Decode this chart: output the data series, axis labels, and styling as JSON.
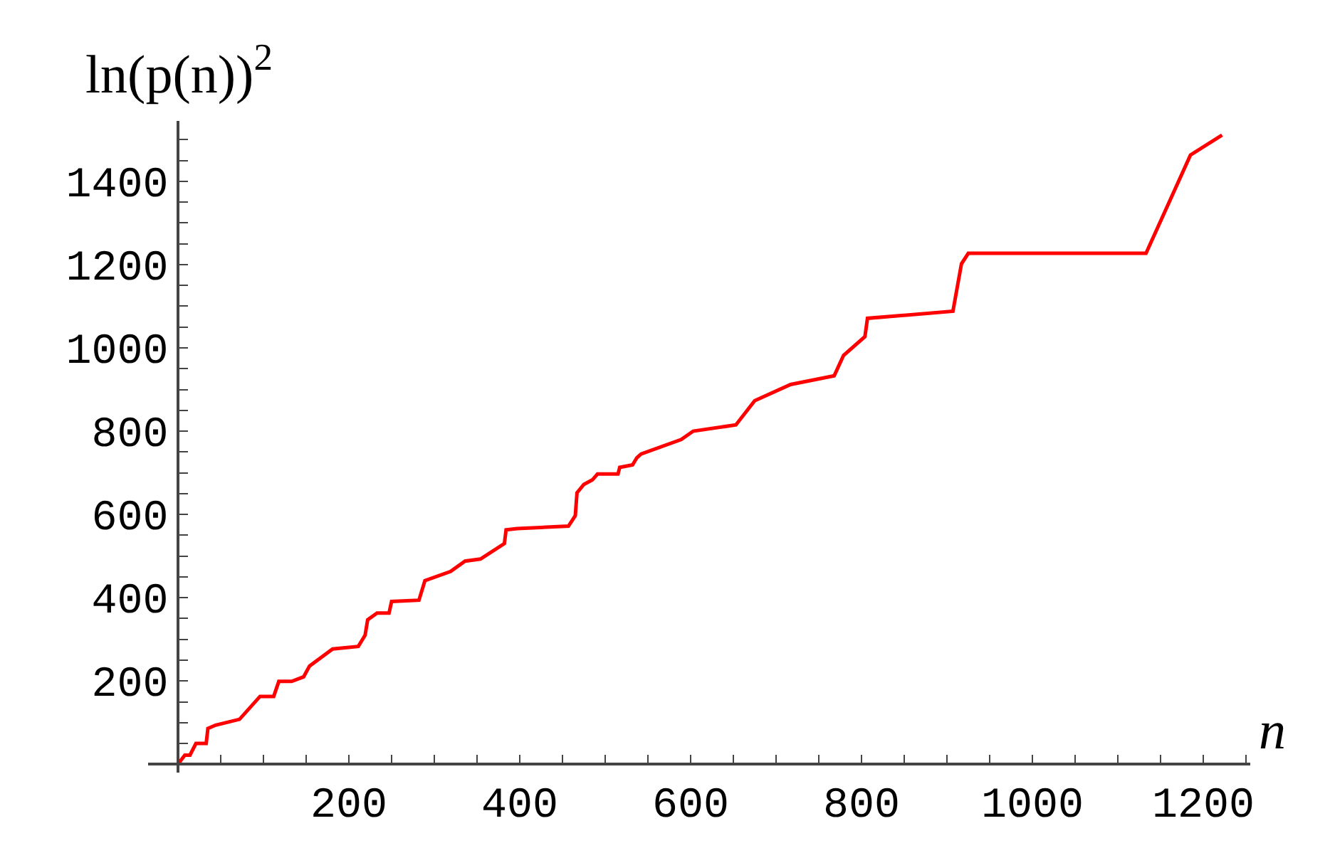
{
  "chart_data": {
    "type": "line",
    "xlabel": "n",
    "ylabel": "ln(p(n))$^{2}$",
    "x": [
      0,
      8,
      14,
      21,
      33,
      35,
      44,
      72,
      96,
      112,
      118,
      133,
      147,
      154,
      181,
      211,
      219,
      222,
      233,
      247,
      250,
      282,
      289,
      319,
      336,
      354,
      382,
      384,
      397,
      457,
      465,
      467,
      475,
      485,
      491,
      515,
      517,
      532,
      537,
      542,
      589,
      603,
      653,
      675,
      717,
      768,
      779,
      804,
      807,
      907,
      917,
      925,
      1133,
      1185,
      1222
    ],
    "series": [
      {
        "color": "#ff0000",
        "values": [
          0,
          22,
          22,
          50,
          50,
          86,
          94,
          108,
          163,
          163,
          199,
          199,
          210,
          236,
          277,
          283,
          310,
          347,
          363,
          363,
          391,
          394,
          441,
          463,
          488,
          493,
          530,
          563,
          566,
          572,
          597,
          652,
          672,
          683,
          697,
          697,
          713,
          719,
          736,
          745,
          780,
          800,
          815,
          873,
          912,
          933,
          982,
          1027,
          1071,
          1088,
          1202,
          1227,
          1227,
          1463,
          1511
        ]
      }
    ],
    "xlim": [
      -35,
      1255
    ],
    "ylim": [
      -20,
      1545
    ],
    "xticks": [
      {
        "value": 50,
        "label": null
      },
      {
        "value": 100,
        "label": null
      },
      {
        "value": 150,
        "label": null
      },
      200,
      {
        "value": 250,
        "label": null
      },
      {
        "value": 300,
        "label": null
      },
      {
        "value": 350,
        "label": null
      },
      400,
      {
        "value": 450,
        "label": null
      },
      {
        "value": 500,
        "label": null
      },
      {
        "value": 550,
        "label": null
      },
      600,
      {
        "value": 650,
        "label": null
      },
      {
        "value": 700,
        "label": null
      },
      {
        "value": 750,
        "label": null
      },
      800,
      {
        "value": 850,
        "label": null
      },
      {
        "value": 900,
        "label": null
      },
      {
        "value": 950,
        "label": null
      },
      1000,
      {
        "value": 1050,
        "label": null
      },
      {
        "value": 1100,
        "label": null
      },
      {
        "value": 1150,
        "label": null
      },
      1200,
      {
        "value": 1250,
        "label": null
      }
    ],
    "yticks": [
      {
        "value": 50,
        "label": null
      },
      {
        "value": 100,
        "label": null
      },
      {
        "value": 150,
        "label": null
      },
      200,
      {
        "value": 250,
        "label": null
      },
      {
        "value": 300,
        "label": null
      },
      {
        "value": 350,
        "label": null
      },
      400,
      {
        "value": 450,
        "label": null
      },
      {
        "value": 500,
        "label": null
      },
      {
        "value": 550,
        "label": null
      },
      600,
      {
        "value": 650,
        "label": null
      },
      {
        "value": 700,
        "label": null
      },
      {
        "value": 750,
        "label": null
      },
      800,
      {
        "value": 850,
        "label": null
      },
      {
        "value": 900,
        "label": null
      },
      {
        "value": 950,
        "label": null
      },
      1000,
      {
        "value": 1050,
        "label": null
      },
      {
        "value": 1100,
        "label": null
      },
      {
        "value": 1150,
        "label": null
      },
      1200,
      {
        "value": 1250,
        "label": null
      },
      {
        "value": 1300,
        "label": null
      },
      {
        "value": 1350,
        "label": null
      },
      1400,
      {
        "value": 1450,
        "label": null
      },
      {
        "value": 1500,
        "label": null
      }
    ],
    "legend": false,
    "marker": "none",
    "line_style": "solid"
  }
}
